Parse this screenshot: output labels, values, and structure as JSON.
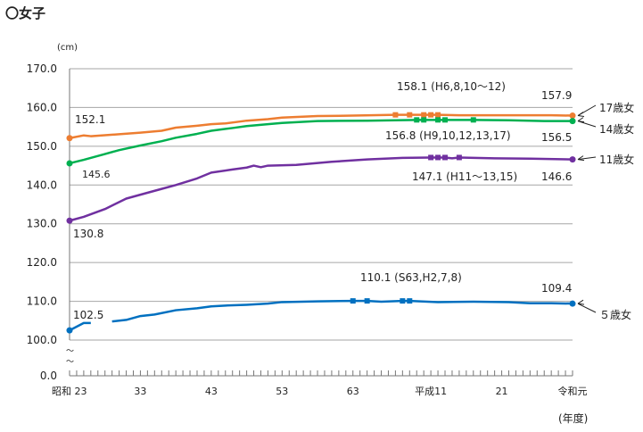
{
  "title": "〇女子",
  "chart_data": {
    "type": "line",
    "title": "〇女子",
    "ylabel": "(cm)",
    "xlabel": "(年度)",
    "ylim": [
      100,
      170
    ],
    "y_break_label": "0.0",
    "yticks": [
      "170.0",
      "160.0",
      "150.0",
      "140.0",
      "130.0",
      "120.0",
      "110.0",
      "100.0"
    ],
    "xlim": [
      1948,
      2019
    ],
    "xticks": [
      {
        "year": 1948,
        "label": "昭和 23"
      },
      {
        "year": 1958,
        "label": "33"
      },
      {
        "year": 1968,
        "label": "43"
      },
      {
        "year": 1978,
        "label": "53"
      },
      {
        "year": 1988,
        "label": "63"
      },
      {
        "year": 1999,
        "label": "平成11"
      },
      {
        "year": 2009,
        "label": "21"
      },
      {
        "year": 2019,
        "label": "令和元"
      }
    ],
    "series": [
      {
        "name": "17歳女",
        "color": "#ED7D31",
        "max_years": [
          1994,
          1996,
          1998,
          1999,
          2000
        ],
        "max_value": 158.1,
        "points": [
          [
            1948,
            152.1
          ],
          [
            1950,
            152.8
          ],
          [
            1951,
            152.6
          ],
          [
            1955,
            153.1
          ],
          [
            1958,
            153.5
          ],
          [
            1961,
            154.0
          ],
          [
            1963,
            154.8
          ],
          [
            1966,
            155.3
          ],
          [
            1968,
            155.7
          ],
          [
            1970,
            155.9
          ],
          [
            1973,
            156.6
          ],
          [
            1976,
            157.0
          ],
          [
            1978,
            157.4
          ],
          [
            1983,
            157.8
          ],
          [
            1988,
            157.9
          ],
          [
            1994,
            158.1
          ],
          [
            1996,
            158.1
          ],
          [
            1998,
            158.1
          ],
          [
            1999,
            158.1
          ],
          [
            2000,
            158.1
          ],
          [
            2003,
            158.0
          ],
          [
            2010,
            158.0
          ],
          [
            2016,
            158.0
          ],
          [
            2019,
            157.9
          ]
        ]
      },
      {
        "name": "14歳女",
        "color": "#00B050",
        "max_years": [
          1997,
          1998,
          2000,
          2001,
          2005
        ],
        "max_value": 156.8,
        "points": [
          [
            1948,
            145.6
          ],
          [
            1950,
            146.5
          ],
          [
            1953,
            148.0
          ],
          [
            1955,
            149.0
          ],
          [
            1958,
            150.2
          ],
          [
            1961,
            151.3
          ],
          [
            1963,
            152.2
          ],
          [
            1966,
            153.2
          ],
          [
            1968,
            154.0
          ],
          [
            1971,
            154.7
          ],
          [
            1973,
            155.2
          ],
          [
            1976,
            155.7
          ],
          [
            1978,
            156.0
          ],
          [
            1983,
            156.5
          ],
          [
            1990,
            156.6
          ],
          [
            1997,
            156.8
          ],
          [
            1998,
            156.8
          ],
          [
            2000,
            156.8
          ],
          [
            2001,
            156.8
          ],
          [
            2005,
            156.8
          ],
          [
            2010,
            156.7
          ],
          [
            2015,
            156.5
          ],
          [
            2019,
            156.5
          ]
        ]
      },
      {
        "name": "11歳女",
        "color": "#7030A0",
        "max_years": [
          1999,
          2000,
          2001,
          2003
        ],
        "max_value": 147.1,
        "points": [
          [
            1948,
            130.8
          ],
          [
            1950,
            131.8
          ],
          [
            1953,
            133.8
          ],
          [
            1956,
            136.5
          ],
          [
            1958,
            137.5
          ],
          [
            1961,
            139.0
          ],
          [
            1963,
            140.0
          ],
          [
            1966,
            141.7
          ],
          [
            1968,
            143.2
          ],
          [
            1971,
            144.0
          ],
          [
            1973,
            144.5
          ],
          [
            1974,
            145.0
          ],
          [
            1975,
            144.6
          ],
          [
            1976,
            145.0
          ],
          [
            1980,
            145.2
          ],
          [
            1985,
            146.0
          ],
          [
            1990,
            146.6
          ],
          [
            1995,
            147.0
          ],
          [
            1999,
            147.1
          ],
          [
            2000,
            147.1
          ],
          [
            2001,
            147.1
          ],
          [
            2002,
            146.9
          ],
          [
            2003,
            147.1
          ],
          [
            2008,
            146.9
          ],
          [
            2013,
            146.8
          ],
          [
            2019,
            146.6
          ]
        ]
      },
      {
        "name": "５歳女",
        "color": "#0070C0",
        "max_years": [
          1988,
          1990,
          1995,
          1996
        ],
        "max_value": 110.1,
        "points": [
          [
            1948,
            102.5
          ],
          [
            1950,
            104.4
          ],
          [
            1951,
            104.4
          ],
          null,
          [
            1954,
            104.8
          ],
          [
            1956,
            105.2
          ],
          [
            1958,
            106.2
          ],
          [
            1960,
            106.6
          ],
          [
            1963,
            107.7
          ],
          [
            1966,
            108.2
          ],
          [
            1968,
            108.7
          ],
          [
            1970,
            108.9
          ],
          [
            1973,
            109.1
          ],
          [
            1976,
            109.4
          ],
          [
            1978,
            109.8
          ],
          [
            1983,
            110.0
          ],
          [
            1988,
            110.1
          ],
          [
            1990,
            110.1
          ],
          [
            1992,
            109.9
          ],
          [
            1995,
            110.1
          ],
          [
            1996,
            110.1
          ],
          [
            2000,
            109.8
          ],
          [
            2005,
            109.9
          ],
          [
            2010,
            109.8
          ],
          [
            2013,
            109.5
          ],
          [
            2016,
            109.5
          ],
          [
            2019,
            109.4
          ]
        ]
      }
    ],
    "annotations": {
      "s17_start": "152.1",
      "s17_max": "158.1 (H6,8,10〜12)",
      "s17_end": "157.9",
      "s14_start": "145.6",
      "s14_max": "156.8 (H9,10,12,13,17)",
      "s14_end": "156.5",
      "s11_start": "130.8",
      "s11_max": "147.1 (H11〜13,15)",
      "s11_end": "146.6",
      "s5_start": "102.5",
      "s5_max": "110.1 (S63,H2,7,8)",
      "s5_end": "109.4"
    },
    "legend": [
      "17歳女",
      "14歳女",
      "11歳女",
      "５歳女"
    ]
  }
}
